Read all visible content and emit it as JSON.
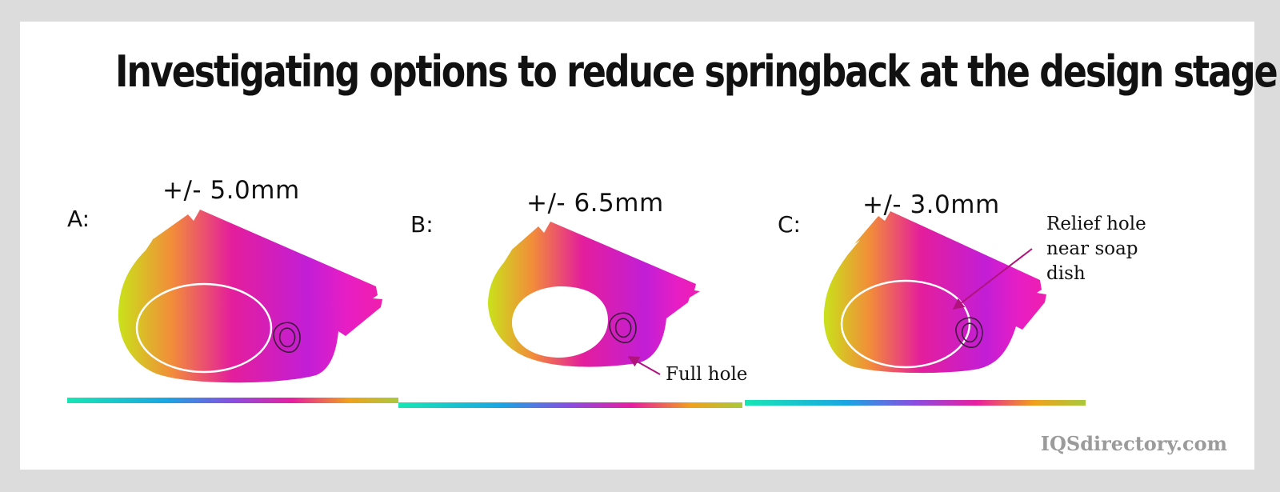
{
  "title": "Investigating options to reduce springback at the design stage",
  "panels": [
    {
      "label": "A:",
      "tolerance": "+/- 5.0mm"
    },
    {
      "label": "B:",
      "tolerance": "+/- 6.5mm"
    },
    {
      "label": "C:",
      "tolerance": "+/- 3.0mm"
    }
  ],
  "callouts": {
    "full_hole": "Full hole",
    "relief_hole": [
      "Relief hole",
      "near soap",
      "dish"
    ]
  },
  "watermark": "IQSdirectory.com",
  "colors": {
    "background": "#dcdcdc",
    "gradient": [
      "#c9e21a",
      "#f28c3a",
      "#e41e9c",
      "#c21ed6",
      "#e81ec4",
      "#f01fa8"
    ],
    "base_bar": [
      "#17e6b4",
      "#1aa5e3",
      "#8a4de0",
      "#e81ea0",
      "#f0a11c",
      "#a9c93c"
    ],
    "arrow": "#b0127e"
  }
}
